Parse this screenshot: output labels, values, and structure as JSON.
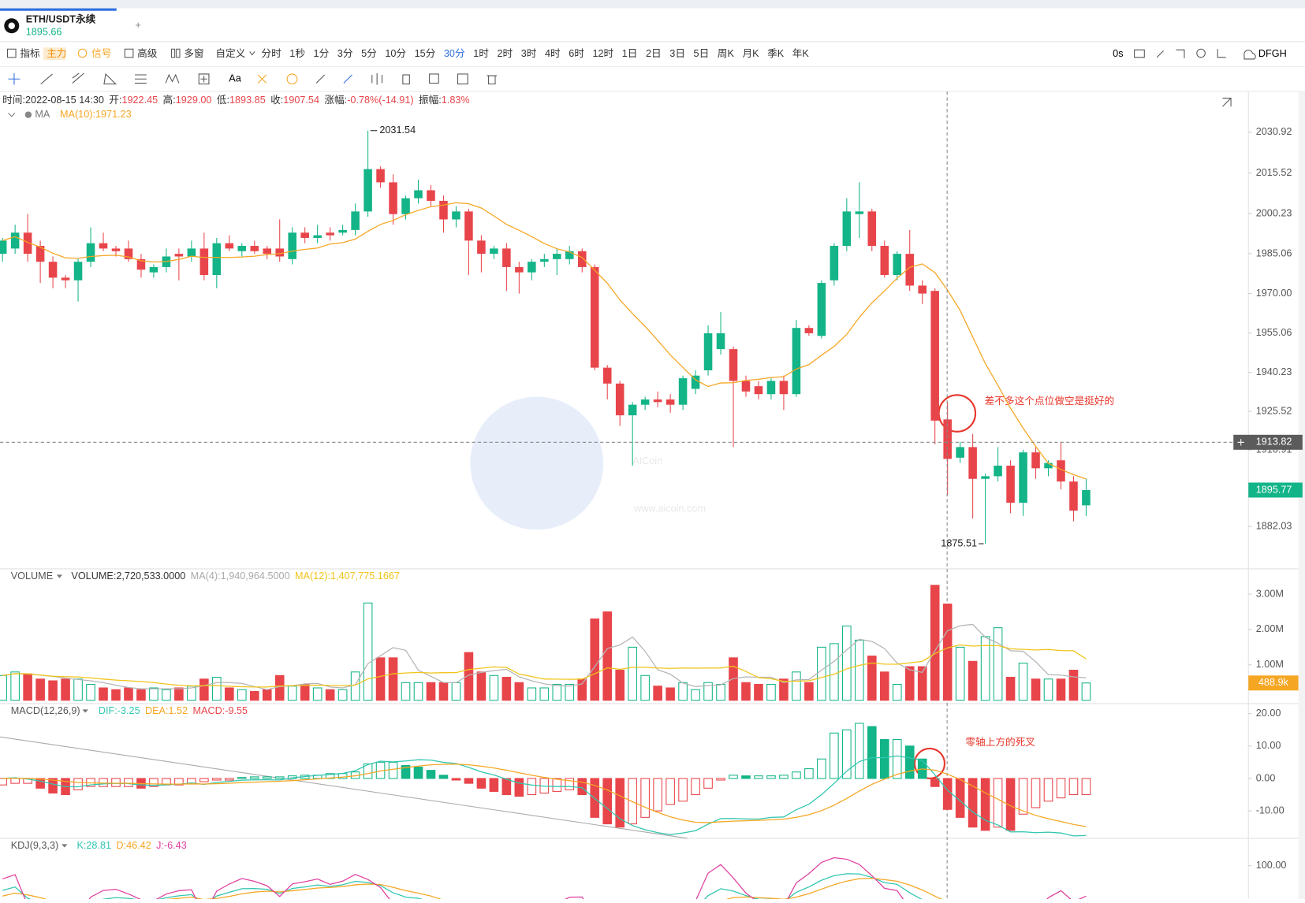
{
  "header": {
    "symbol": "ETH/USDT永续",
    "price": "1895.66",
    "add": "+"
  },
  "toolbar": {
    "items": [
      "指标",
      "主力",
      "信号",
      "高级",
      "多窗",
      "自定义"
    ],
    "intervals": [
      "分时",
      "1秒",
      "1分",
      "3分",
      "5分",
      "10分",
      "15分",
      "30分",
      "1时",
      "2时",
      "3时",
      "4时",
      "6时",
      "12时",
      "1日",
      "2日",
      "3日",
      "5日",
      "周K",
      "月K",
      "季K",
      "年K"
    ],
    "active": "30分",
    "right": [
      "0s",
      "DFGH"
    ],
    "text_tool": "Aa"
  },
  "info": [
    {
      "label": "时间:2022-08-15 14:30"
    },
    {
      "label": "开:",
      "value": "1922.45"
    },
    {
      "label": "高:",
      "value": "1929.00"
    },
    {
      "label": "低:",
      "value": "1893.85"
    },
    {
      "label": "收:",
      "value": "1907.54"
    },
    {
      "label": "涨幅:",
      "value": "-0.78%(-14.91)"
    },
    {
      "label": "振幅:",
      "value": "1.83%"
    }
  ],
  "main_legend": {
    "name": "MA",
    "ma": "MA(10):1971.23"
  },
  "watermark": {
    "brand": "AICoin",
    "url": "www.aicoin.com"
  },
  "annotations": [
    "差不多这个点位做空是挺好的",
    "零轴上方的死叉"
  ],
  "chart_data": [
    {
      "type": "candlestick",
      "up_color": "#13b487",
      "down_color": "#e8454b",
      "ma_color": "#f5a623",
      "open": [
        1985,
        1987,
        1993,
        1988,
        1982,
        1976,
        1975,
        1982,
        1989,
        1987,
        1987,
        1983,
        1978,
        1980,
        1985,
        1984,
        1987,
        1977,
        1989,
        1986,
        1988,
        1987,
        1987,
        1983,
        1993,
        1991,
        1993,
        1993,
        1994,
        2001,
        2017,
        2012,
        2000,
        2006,
        2009,
        2005,
        1998,
        2001,
        1990,
        1985,
        1987,
        1980,
        1978,
        1982,
        1983,
        1983,
        1986,
        1980,
        1942,
        1936,
        1924,
        1928,
        1930,
        1930,
        1928,
        1934,
        1941,
        1949,
        1949,
        1937,
        1935,
        1932,
        1937,
        1932,
        1957,
        1954,
        1975,
        1988,
        2000,
        2001,
        1988,
        1977,
        1985,
        1973,
        1971,
        1922.45,
        1908,
        1912,
        1900,
        1901,
        1905,
        1891,
        1910,
        1904,
        1907,
        1899,
        1890
      ],
      "high": [
        1991,
        1996,
        2000,
        1990,
        1984,
        1977,
        1983,
        1995,
        1993,
        1988,
        1990,
        1985,
        1981,
        1987,
        1987,
        1990,
        1993,
        1991,
        1992,
        1989,
        1990,
        1988,
        1998,
        1995,
        1995,
        1996,
        1995,
        1996,
        2004,
        2031.54,
        2018,
        2015,
        2007,
        2013,
        2011,
        2007,
        2003,
        2002,
        1992,
        1988,
        1989,
        1982,
        1983,
        1985,
        1987,
        1988,
        1987,
        1981,
        1943,
        1937,
        1929,
        1931,
        1933,
        1932,
        1939,
        1941,
        1958,
        1963,
        1950,
        1939,
        1937,
        1938,
        1939,
        1960,
        1958,
        1975,
        1989,
        2006,
        2012,
        2002,
        1990,
        1986,
        1994,
        1975,
        1972,
        1929,
        1914,
        1917,
        1902,
        1912,
        1907,
        1911,
        1912,
        1907,
        1914,
        1901,
        1900
      ],
      "low": [
        1982,
        1985,
        1982,
        1974,
        1972,
        1972,
        1967,
        1980,
        1986,
        1984,
        1982,
        1976,
        1976,
        1978,
        1975,
        1982,
        1975,
        1972,
        1986,
        1984,
        1985,
        1983,
        1982,
        1981,
        1989,
        1989,
        1990,
        1992,
        1992,
        1999,
        2010,
        1996,
        1998,
        2004,
        2003,
        1993,
        1995,
        1977,
        1978,
        1983,
        1971,
        1970,
        1975,
        1980,
        1977,
        1981,
        1978,
        1941,
        1930,
        1920,
        1905,
        1926,
        1927,
        1925,
        1926,
        1932,
        1939,
        1947,
        1912,
        1931,
        1930,
        1930,
        1926,
        1931,
        1954,
        1953,
        1973,
        1986,
        1991,
        1986,
        1976,
        1975,
        1971,
        1966,
        1913,
        1893.85,
        1906,
        1885,
        1875.51,
        1899,
        1887,
        1886,
        1900,
        1901,
        1896,
        1884,
        1886
      ],
      "close": [
        1990,
        1993,
        1985,
        1982,
        1976,
        1975,
        1982,
        1989,
        1987,
        1986,
        1983,
        1979,
        1980,
        1984,
        1984,
        1987,
        1977,
        1989,
        1987,
        1988,
        1986,
        1985,
        1984,
        1993,
        1991,
        1992,
        1992,
        1994,
        2001,
        2017,
        2012,
        2000,
        2006,
        2009,
        2005,
        1998,
        2001,
        1990,
        1985,
        1987,
        1980,
        1978,
        1982,
        1983,
        1985,
        1986,
        1980,
        1942,
        1936,
        1924,
        1928,
        1930,
        1929,
        1928,
        1938,
        1939,
        1955,
        1955,
        1937,
        1933,
        1932,
        1937,
        1932,
        1957,
        1955,
        1974,
        1988,
        2001,
        2001,
        1988,
        1977,
        1985,
        1973,
        1970,
        1922,
        1907.54,
        1912,
        1900,
        1901,
        1905,
        1891,
        1910,
        1904,
        1906,
        1899,
        1888,
        1895.77
      ],
      "ylim": [
        1866.32,
        2046.31
      ],
      "yticks": [
        2030.92,
        2015.52,
        2000.23,
        1985.06,
        {
          "value": 1970,
          "label": "1970.00"
        },
        1955.06,
        1940.23,
        1925.52,
        1910.91,
        1882.03
      ],
      "last_price": 1895.77,
      "crosshair_price": 1913.82
    },
    {
      "type": "volume",
      "title": "VOLUME",
      "legend": [
        "VOLUME:2,720,533.0000",
        "MA(4):1,940,964.5000",
        "MA(12):1,407,775.1667"
      ],
      "values": [
        0.7,
        0.8,
        0.75,
        0.6,
        0.55,
        0.6,
        0.6,
        0.45,
        0.35,
        0.3,
        0.35,
        0.3,
        0.35,
        0.3,
        0.35,
        0.4,
        0.6,
        0.65,
        0.35,
        0.3,
        0.25,
        0.3,
        0.7,
        0.4,
        0.45,
        0.35,
        0.3,
        0.3,
        0.8,
        2.75,
        1.2,
        1.2,
        0.5,
        0.5,
        0.5,
        0.5,
        0.5,
        1.35,
        0.8,
        0.7,
        0.65,
        0.5,
        0.35,
        0.35,
        0.45,
        0.45,
        0.6,
        2.3,
        2.5,
        0.85,
        1.5,
        0.7,
        0.4,
        0.35,
        0.5,
        0.3,
        0.5,
        0.45,
        1.2,
        0.5,
        0.45,
        0.45,
        0.6,
        0.8,
        0.5,
        1.5,
        1.6,
        2.1,
        1.7,
        1.25,
        0.8,
        0.45,
        0.95,
        0.95,
        3.25,
        2.72,
        1.5,
        1.1,
        1.8,
        2.05,
        0.65,
        1.05,
        0.6,
        0.6,
        0.6,
        0.85,
        0.4889
      ],
      "ylim": [
        0,
        3.69
      ],
      "yticks": [
        {
          "value": 3,
          "label": "3.00M"
        },
        {
          "value": 2,
          "label": "2.00M"
        },
        {
          "value": 1,
          "label": "1.00M"
        }
      ],
      "last_value": {
        "value": 0.4889,
        "label": "488.9k"
      },
      "ma4_color": "#b5b5b5",
      "ma12_color": "#f0c419"
    },
    {
      "type": "macd",
      "title": "MACD(12,26,9)",
      "dif_label": "DIF:-3.25",
      "dea_label": "DEA:1.52",
      "macd_label": "MACD:-9.55",
      "values": [
        -2,
        -1.5,
        -1.5,
        -3,
        -4.5,
        -5,
        -3.5,
        -2.5,
        -2.5,
        -2.5,
        -2.5,
        -3,
        -2.5,
        -2,
        -2,
        -1.5,
        -1,
        -0.5,
        -0.5,
        0.3,
        0.5,
        0.5,
        0.5,
        0.8,
        1,
        1,
        1.5,
        1.5,
        2,
        4.5,
        5,
        5,
        4,
        3.5,
        2.5,
        1,
        -0.5,
        -1.5,
        -3,
        -4,
        -5,
        -5.5,
        -5,
        -4.5,
        -4,
        -3.5,
        -5,
        -12,
        -14,
        -15,
        -14,
        -12,
        -10,
        -8,
        -7,
        -5,
        -3,
        -0.5,
        1,
        0.8,
        0.8,
        0.8,
        1,
        2,
        3,
        6,
        14,
        15,
        17,
        16,
        12,
        12,
        10,
        6,
        -2.5,
        -9.55,
        -12,
        -15,
        -16,
        -15,
        -16,
        -11,
        -9,
        -7,
        -6,
        -5,
        -5
      ],
      "ylim": [
        -18.46,
        22.56
      ],
      "yticks": [
        {
          "value": 20,
          "label": "20.00"
        },
        {
          "value": 10,
          "label": "10.00"
        },
        {
          "value": 0,
          "label": "0.00"
        },
        {
          "value": -10,
          "label": "-10.00"
        }
      ],
      "dif_color": "#31c6b0",
      "dea_color": "#f5a623"
    },
    {
      "type": "kdj",
      "title": "KDJ(9,3,3)",
      "k_label": "K:28.81",
      "d_label": "D:46.42",
      "j_label": "J:-6.43",
      "ylim": [
        50,
        138.75
      ],
      "yticks": [
        {
          "value": 100,
          "label": "100.00"
        }
      ],
      "k_color": "#31c6b0",
      "d_color": "#f5a623",
      "j_color": "#e040a0"
    }
  ]
}
